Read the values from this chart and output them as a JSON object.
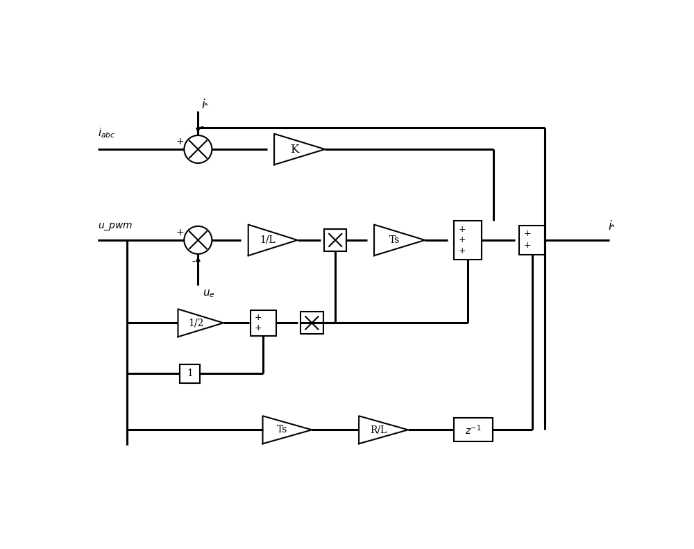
{
  "bg_color": "#ffffff",
  "lw": 1.5,
  "blw": 2.2,
  "fig_width": 10.0,
  "fig_height": 7.91,
  "xlim": [
    0,
    10
  ],
  "ylim": [
    0,
    7.91
  ]
}
